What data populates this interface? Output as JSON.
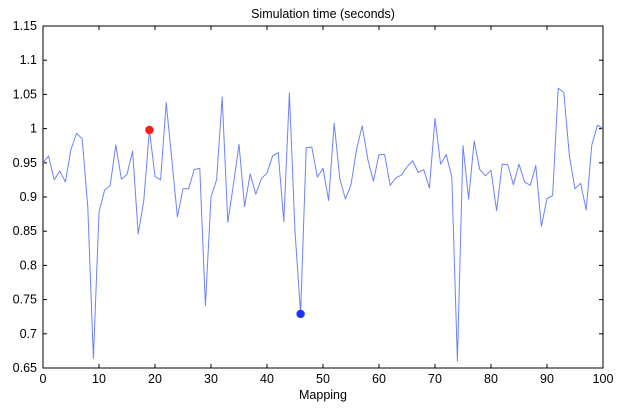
{
  "chart_data": {
    "type": "line",
    "title": "Simulation time (seconds)",
    "xlabel": "Mapping",
    "ylabel": "",
    "xlim": [
      0,
      100
    ],
    "ylim": [
      0.65,
      1.15
    ],
    "grid": false,
    "xticks": [
      0,
      10,
      20,
      30,
      40,
      50,
      60,
      70,
      80,
      90,
      100
    ],
    "xtick_labels": [
      "0",
      "10",
      "20",
      "30",
      "40",
      "50",
      "60",
      "70",
      "80",
      "90",
      "100"
    ],
    "yticks": [
      0.65,
      0.7,
      0.75,
      0.8,
      0.85,
      0.9,
      0.95,
      1,
      1.05,
      1.1,
      1.15
    ],
    "ytick_labels": [
      "0.65",
      "0.7",
      "0.75",
      "0.8",
      "0.85",
      "0.9",
      "0.95",
      "1",
      "1.05",
      "1.1",
      "1.15"
    ],
    "series": [
      {
        "color": "#6f82f2",
        "x": [
          0,
          1,
          2,
          3,
          4,
          5,
          6,
          7,
          8,
          9,
          10,
          11,
          12,
          13,
          14,
          15,
          16,
          17,
          18,
          19,
          20,
          21,
          22,
          23,
          24,
          25,
          26,
          27,
          28,
          29,
          30,
          31,
          32,
          33,
          34,
          35,
          36,
          37,
          38,
          39,
          40,
          41,
          42,
          43,
          44,
          45,
          46,
          47,
          48,
          49,
          50,
          51,
          52,
          53,
          54,
          55,
          56,
          57,
          58,
          59,
          60,
          61,
          62,
          63,
          64,
          65,
          66,
          67,
          68,
          69,
          70,
          71,
          72,
          73,
          74,
          75,
          76,
          77,
          78,
          79,
          80,
          81,
          82,
          83,
          84,
          85,
          86,
          87,
          88,
          89,
          90,
          91,
          92,
          93,
          94,
          95,
          96,
          97,
          98,
          99,
          100
        ],
        "values": [
          0.95,
          0.96,
          0.925,
          0.938,
          0.922,
          0.97,
          0.993,
          0.985,
          0.885,
          0.664,
          0.878,
          0.91,
          0.917,
          0.976,
          0.926,
          0.933,
          0.967,
          0.846,
          0.895,
          0.998,
          0.93,
          0.925,
          1.038,
          0.955,
          0.871,
          0.912,
          0.912,
          0.94,
          0.942,
          0.741,
          0.9,
          0.925,
          1.046,
          0.863,
          0.918,
          0.977,
          0.886,
          0.934,
          0.904,
          0.927,
          0.935,
          0.96,
          0.965,
          0.864,
          1.052,
          0.85,
          0.729,
          0.972,
          0.973,
          0.929,
          0.942,
          0.895,
          1.008,
          0.927,
          0.897,
          0.918,
          0.97,
          1.004,
          0.955,
          0.923,
          0.962,
          0.962,
          0.917,
          0.928,
          0.932,
          0.944,
          0.953,
          0.936,
          0.94,
          0.913,
          1.015,
          0.948,
          0.962,
          0.929,
          0.66,
          0.975,
          0.897,
          0.982,
          0.94,
          0.931,
          0.939,
          0.88,
          0.948,
          0.947,
          0.918,
          0.948,
          0.922,
          0.917,
          0.946,
          0.857,
          0.898,
          0.902,
          1.059,
          1.053,
          0.96,
          0.912,
          0.92,
          0.881,
          0.976,
          1.005,
          1.0
        ]
      }
    ],
    "markers": [
      {
        "x": 19,
        "y": 0.998,
        "color": "#ff1a1a"
      },
      {
        "x": 46,
        "y": 0.729,
        "color": "#1a33ff"
      }
    ]
  }
}
